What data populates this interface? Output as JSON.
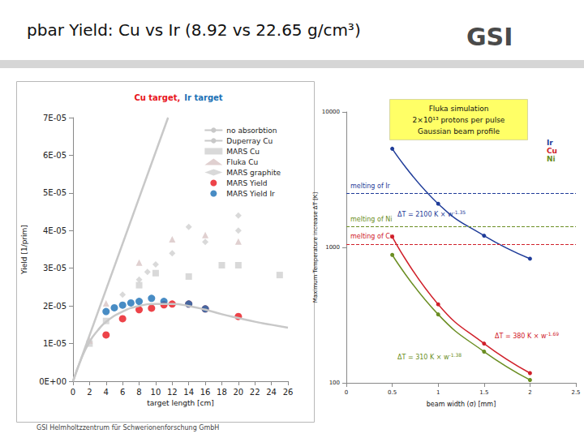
{
  "slide": {
    "title": "pbar Yield: Cu vs Ir (8.92 vs 22.65 g/cm³)",
    "logo": "GSI",
    "footer": "GSI Helmholtzzentrum für Schwerionenforschung GmbH"
  },
  "chart_data": [
    {
      "type": "scatter",
      "title": [
        {
          "text": "Cu target,",
          "color": "#e8141c"
        },
        {
          "text": "Ir target",
          "color": "#1a6fb5"
        }
      ],
      "x_label": "target length [cm]",
      "y_label": "Yield [1/prim]",
      "xlim": [
        0,
        26
      ],
      "xticks": [
        0,
        2,
        4,
        6,
        8,
        10,
        12,
        14,
        16,
        18,
        20,
        22,
        24,
        26
      ],
      "ylim": [
        0,
        7e-05
      ],
      "yticks": [
        {
          "value": 0,
          "label": "0E+00"
        },
        {
          "value": 1e-05,
          "label": "1E-05"
        },
        {
          "value": 2e-05,
          "label": "2E-05"
        },
        {
          "value": 3e-05,
          "label": "3E-05"
        },
        {
          "value": 4e-05,
          "label": "4E-05"
        },
        {
          "value": 5e-05,
          "label": "5E-05"
        },
        {
          "value": 6e-05,
          "label": "6E-05"
        },
        {
          "value": 7e-05,
          "label": "7E-05"
        }
      ],
      "grid": false,
      "legend": "upper right",
      "series": [
        {
          "name": "no absorbtion",
          "type": "line",
          "marker": "none",
          "line_style": "solid",
          "color": "#c8c8c8",
          "x": [
            0,
            11.5
          ],
          "values": [
            0,
            7e-05
          ]
        },
        {
          "name": "Duperray Cu",
          "type": "line",
          "marker": "none",
          "line_style": "solid",
          "color": "#c8c8c8",
          "x": [
            0,
            1,
            2,
            3,
            4,
            6,
            8,
            10,
            12,
            14,
            16,
            18,
            20,
            22,
            24,
            26
          ],
          "values": [
            0,
            6e-06,
            1.05e-05,
            1.35e-05,
            1.58e-05,
            1.85e-05,
            2e-05,
            2.05e-05,
            2.05e-05,
            2e-05,
            1.9e-05,
            1.78e-05,
            1.68e-05,
            1.58e-05,
            1.5e-05,
            1.42e-05
          ]
        },
        {
          "name": "MARS Cu",
          "type": "scatter",
          "marker": "square",
          "color": "#cfcfcf",
          "x": [
            2,
            4,
            8,
            10,
            14,
            18,
            20,
            25
          ],
          "values": [
            1e-05,
            1.6e-05,
            2.55e-05,
            2.87e-05,
            2.78e-05,
            3.08e-05,
            3.08e-05,
            2.82e-05
          ]
        },
        {
          "name": "Fluka Cu",
          "type": "scatter",
          "marker": "triangle",
          "color": "#d8c4c4",
          "x": [
            2,
            4,
            8,
            12,
            16,
            20
          ],
          "values": [
            1.08e-05,
            2.07e-05,
            3.15e-05,
            3.77e-05,
            3.88e-05,
            3.71e-05
          ]
        },
        {
          "name": "MARS graphite",
          "type": "scatter",
          "marker": "diamond",
          "color": "#d0d0d0",
          "x": [
            6,
            8,
            9,
            10,
            12,
            14,
            16,
            20,
            20
          ],
          "values": [
            2.3e-05,
            2.7e-05,
            2.9e-05,
            3.1e-05,
            3.4e-05,
            4.1e-05,
            3.7e-05,
            4e-05,
            4.4e-05
          ]
        },
        {
          "name": "MARS Yield",
          "type": "scatter",
          "marker": "circle",
          "color": "#e8141c",
          "x": [
            4,
            6,
            8,
            9.5,
            11,
            12,
            14,
            16,
            20
          ],
          "values": [
            1.23e-05,
            1.66e-05,
            1.9e-05,
            1.94e-05,
            2.03e-05,
            2.05e-05,
            2.05e-05,
            1.92e-05,
            1.72e-05
          ]
        },
        {
          "name": "MARS Yield Ir",
          "type": "scatter",
          "marker": "circle",
          "color": "#1a6fb5",
          "x": [
            4,
            5,
            6,
            7,
            8,
            9.5,
            11,
            14,
            16
          ],
          "values": [
            1.85e-05,
            1.95e-05,
            2.02e-05,
            2.08e-05,
            2.12e-05,
            2.2e-05,
            2.12e-05,
            2.05e-05,
            1.92e-05
          ]
        }
      ]
    },
    {
      "type": "line",
      "box_text": [
        "Fluka simulation",
        "2×10¹³ protons per pulse",
        "Gaussian beam profile"
      ],
      "x_label": "beam width (σ) [mm]",
      "y_label": "Maximum Temperature increase ΔT [K]",
      "xlim": [
        0,
        2.5
      ],
      "xticks": [
        0,
        0.5,
        1,
        1.5,
        2,
        2.5
      ],
      "ylim": [
        100,
        10000
      ],
      "yticks": [
        100,
        1000,
        10000
      ],
      "log": "y",
      "grid": false,
      "legend": "upper right",
      "series": [
        {
          "name": "Ir",
          "marker": "circle",
          "line_style": "solid",
          "color": "#1f3c99",
          "x": [
            0.5,
            1,
            1.5,
            2
          ],
          "values": [
            5350,
            2100,
            1220,
            825
          ]
        },
        {
          "name": "Cu",
          "marker": "circle",
          "line_style": "solid",
          "color": "#d0202a",
          "x": [
            0.5,
            1,
            1.5,
            2
          ],
          "values": [
            1200,
            380,
            195,
            118
          ]
        },
        {
          "name": "Ni",
          "marker": "circle",
          "line_style": "solid",
          "color": "#6b8e23",
          "x": [
            0.5,
            1,
            1.5,
            2
          ],
          "values": [
            880,
            320,
            170,
            105
          ]
        }
      ],
      "reference_lines": [
        {
          "label": "melting of Ir",
          "value": 2500,
          "color": "#1f3c99"
        },
        {
          "label": "melting of Ni",
          "value": 1430,
          "color": "#6b8e23"
        },
        {
          "label": "melting of Cu",
          "value": 1060,
          "color": "#d0202a"
        }
      ],
      "annotations": [
        {
          "text": "ΔT = 2100 K × w",
          "sup": "-1.35",
          "color": "#1f3c99"
        },
        {
          "text": "ΔT = 380 K × w",
          "sup": "-1.69",
          "color": "#d0202a"
        },
        {
          "text": "ΔT = 310 K × w",
          "sup": "-1.38",
          "color": "#6b8e23"
        }
      ]
    }
  ]
}
